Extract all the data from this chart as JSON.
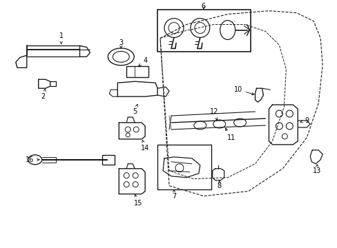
{
  "bg_color": "#ffffff",
  "line_color": "#1a1a1a",
  "fig_width": 4.89,
  "fig_height": 3.6,
  "dpi": 100,
  "label_fontsize": 7.0
}
